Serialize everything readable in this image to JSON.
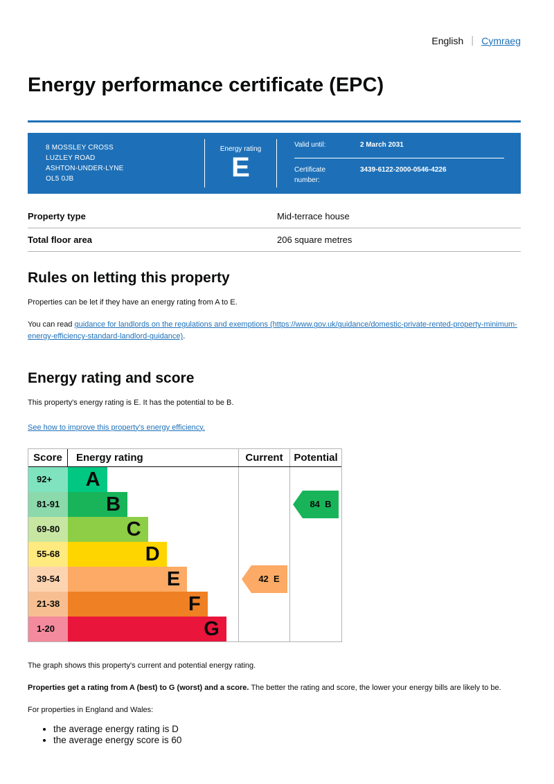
{
  "language_bar": {
    "current": "English",
    "divider": "|",
    "link": "Cymraeg"
  },
  "page_title": "Energy performance certificate (EPC)",
  "colors": {
    "govuk_blue": "#1d70b8",
    "link_blue": "#1d70b8",
    "text_black": "#0b0c0c",
    "border_grey": "#b1b4b6"
  },
  "summary_box": {
    "address_lines": [
      "8 MOSSLEY CROSS",
      "LUZLEY ROAD",
      "ASHTON-UNDER-LYNE",
      "OL5 0JB"
    ],
    "energy_rating_label": "Energy rating",
    "energy_rating": "E",
    "valid_until_label": "Valid until:",
    "valid_until_value": "2 March 2031",
    "certificate_number_label": "Certificate number:",
    "certificate_number_value": "3439-6122-2000-0546-4226"
  },
  "property_details": {
    "rows": [
      {
        "label": "Property type",
        "value": "Mid-terrace house"
      },
      {
        "label": "Total floor area",
        "value": "206 square metres"
      }
    ]
  },
  "rules_section": {
    "heading": "Rules on letting this property",
    "paragraph1": "Properties can be let if they have an energy rating from A to E.",
    "paragraph2_prefix": "You can read ",
    "paragraph2_link": "guidance for landlords on the regulations and exemptions (https://www.gov.uk/guidance/domestic-private-rented-property-minimum-energy-efficiency-standard-landlord-guidance)",
    "paragraph2_suffix": "."
  },
  "rating_section": {
    "heading": "Energy rating and score",
    "paragraph": "This property's energy rating is E. It has the potential to be B.",
    "improve_link": "See how to improve this property's energy efficiency."
  },
  "chart_data": {
    "type": "bar",
    "title": "Energy rating and score chart",
    "columns": [
      "Score",
      "Energy rating",
      "Current",
      "Potential"
    ],
    "bands": [
      {
        "range": "92+",
        "letter": "A",
        "color": "#00c781",
        "width_pct": 23
      },
      {
        "range": "81-91",
        "letter": "B",
        "color": "#19b459",
        "width_pct": 35
      },
      {
        "range": "69-80",
        "letter": "C",
        "color": "#8dce46",
        "width_pct": 47
      },
      {
        "range": "55-68",
        "letter": "D",
        "color": "#ffd500",
        "width_pct": 58
      },
      {
        "range": "39-54",
        "letter": "E",
        "color": "#fcaa65",
        "width_pct": 70
      },
      {
        "range": "21-38",
        "letter": "F",
        "color": "#ef8023",
        "width_pct": 82
      },
      {
        "range": "1-20",
        "letter": "G",
        "color": "#e9153b",
        "width_pct": 93
      }
    ],
    "current": {
      "score": 42,
      "letter": "E",
      "band_index": 4,
      "color": "#fcaa65"
    },
    "potential": {
      "score": 84,
      "letter": "B",
      "band_index": 1,
      "color": "#19b459"
    }
  },
  "notes_section": {
    "graph_caption": "The graph shows this property's current and potential energy rating.",
    "lead_bold": "Properties get a rating from A (best) to G (worst) and a score.",
    "lead_rest": " The better the rating and score, the lower your energy bills are likely to be.",
    "avg_intro": "For properties in England and Wales:",
    "bullets": [
      "the average energy rating is D",
      "the average energy score is 60"
    ]
  }
}
